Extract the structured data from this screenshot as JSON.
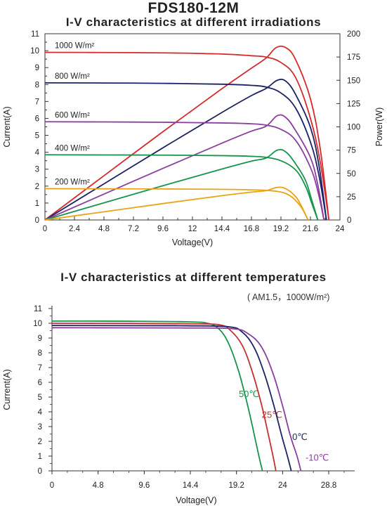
{
  "header": {
    "title": "FDS180-12M"
  },
  "subtitle2": "( AM1.5，1000W/m²)",
  "chart_data": [
    {
      "type": "line",
      "title": "I-V characteristics at different irradiations",
      "xlabel": "Voltage(V)",
      "ylabel": "Current(A)",
      "y2label": "Power(W)",
      "xlim": [
        0,
        24
      ],
      "ylim": [
        0,
        11
      ],
      "y2lim": [
        0,
        200
      ],
      "xticks": [
        "0",
        "2.4",
        "4.8",
        "7.2",
        "9.6",
        "12",
        "14.4",
        "16.8",
        "19.2",
        "21.6",
        "24"
      ],
      "yticks": [
        "0",
        "1",
        "2",
        "3",
        "4",
        "5",
        "6",
        "7",
        "8",
        "9",
        "10",
        "11"
      ],
      "y2ticks": [
        "0",
        "25",
        "50",
        "75",
        "100",
        "125",
        "150",
        "175",
        "200"
      ],
      "grid": false,
      "series": [
        {
          "name": "1000 W/m²",
          "color": "#d42a2a",
          "isc": 9.9,
          "voc": 23.1,
          "vmp": 18.8,
          "imp": 9.6,
          "pmax": 185,
          "iv": [
            [
              0,
              9.9
            ],
            [
              4.8,
              9.89
            ],
            [
              9.6,
              9.87
            ],
            [
              14.4,
              9.8
            ],
            [
              16.8,
              9.7
            ],
            [
              18.0,
              9.62
            ],
            [
              19.2,
              9.3
            ],
            [
              20.4,
              8.4
            ],
            [
              21.6,
              6.0
            ],
            [
              22.4,
              3.4
            ],
            [
              23.1,
              0
            ]
          ],
          "pv": [
            [
              0,
              0
            ],
            [
              4.8,
              47.5
            ],
            [
              9.6,
              94.8
            ],
            [
              14.4,
              141
            ],
            [
              16.8,
              163
            ],
            [
              18.0,
              174
            ],
            [
              18.8,
              185
            ],
            [
              19.6,
              185
            ],
            [
              20.4,
              172
            ],
            [
              21.6,
              130
            ],
            [
              22.4,
              76
            ],
            [
              23.1,
              0
            ]
          ]
        },
        {
          "name": "800 W/m²",
          "color": "#1c2266",
          "isc": 8.1,
          "voc": 22.9,
          "vmp": 18.9,
          "imp": 7.8,
          "pmax": 150,
          "iv": [
            [
              0,
              8.1
            ],
            [
              4.8,
              8.09
            ],
            [
              9.6,
              8.07
            ],
            [
              14.4,
              8.02
            ],
            [
              16.8,
              7.95
            ],
            [
              18.0,
              7.85
            ],
            [
              19.2,
              7.5
            ],
            [
              20.4,
              6.6
            ],
            [
              21.6,
              4.6
            ],
            [
              22.3,
              2.6
            ],
            [
              22.9,
              0
            ]
          ],
          "pv": [
            [
              0,
              0
            ],
            [
              4.8,
              38.8
            ],
            [
              9.6,
              77.5
            ],
            [
              14.4,
              115.5
            ],
            [
              16.8,
              133.6
            ],
            [
              18.0,
              141.3
            ],
            [
              18.9,
              150
            ],
            [
              19.6,
              149
            ],
            [
              20.4,
              134.6
            ],
            [
              21.6,
              99.4
            ],
            [
              22.3,
              58
            ],
            [
              22.9,
              0
            ]
          ]
        },
        {
          "name": "600 W/m²",
          "color": "#8a3e9e",
          "isc": 5.8,
          "voc": 22.7,
          "vmp": 18.9,
          "imp": 5.9,
          "pmax": 112,
          "iv": [
            [
              0,
              5.8
            ],
            [
              4.8,
              5.79
            ],
            [
              9.6,
              5.77
            ],
            [
              14.4,
              5.73
            ],
            [
              16.8,
              5.68
            ],
            [
              18.0,
              5.6
            ],
            [
              19.2,
              5.35
            ],
            [
              20.4,
              4.7
            ],
            [
              21.6,
              3.1
            ],
            [
              22.2,
              1.7
            ],
            [
              22.7,
              0
            ]
          ],
          "pv": [
            [
              0,
              0
            ],
            [
              4.8,
              27.8
            ],
            [
              9.6,
              55.4
            ],
            [
              14.4,
              82.5
            ],
            [
              16.8,
              95.4
            ],
            [
              18.0,
              100.8
            ],
            [
              18.9,
              112
            ],
            [
              19.6,
              110
            ],
            [
              20.4,
              95.9
            ],
            [
              21.6,
              67
            ],
            [
              22.2,
              37.7
            ],
            [
              22.7,
              0
            ]
          ]
        },
        {
          "name": "400 W/m²",
          "color": "#17944a",
          "isc": 3.85,
          "voc": 22.2,
          "vmp": 18.9,
          "imp": 3.9,
          "pmax": 75,
          "iv": [
            [
              0,
              3.85
            ],
            [
              4.8,
              3.84
            ],
            [
              9.6,
              3.83
            ],
            [
              14.4,
              3.8
            ],
            [
              16.8,
              3.76
            ],
            [
              18.0,
              3.7
            ],
            [
              19.2,
              3.5
            ],
            [
              20.4,
              2.95
            ],
            [
              21.2,
              2.0
            ],
            [
              21.7,
              1.0
            ],
            [
              22.2,
              0
            ]
          ],
          "pv": [
            [
              0,
              0
            ],
            [
              4.8,
              18.4
            ],
            [
              9.6,
              36.8
            ],
            [
              14.4,
              54.7
            ],
            [
              16.8,
              63.2
            ],
            [
              18.0,
              66.6
            ],
            [
              18.9,
              75
            ],
            [
              19.6,
              73
            ],
            [
              20.4,
              60.2
            ],
            [
              21.2,
              42.4
            ],
            [
              21.7,
              21.7
            ],
            [
              22.2,
              0
            ]
          ]
        },
        {
          "name": "200 W/m²",
          "color": "#e8a418",
          "isc": 1.85,
          "voc": 21.4,
          "vmp": 18.9,
          "imp": 1.85,
          "pmax": 35,
          "iv": [
            [
              0,
              1.85
            ],
            [
              4.8,
              1.84
            ],
            [
              9.6,
              1.83
            ],
            [
              14.4,
              1.81
            ],
            [
              16.8,
              1.78
            ],
            [
              18.0,
              1.75
            ],
            [
              19.2,
              1.65
            ],
            [
              20.0,
              1.4
            ],
            [
              20.7,
              0.9
            ],
            [
              21.1,
              0.45
            ],
            [
              21.4,
              0
            ]
          ],
          "pv": [
            [
              0,
              0
            ],
            [
              4.8,
              8.8
            ],
            [
              9.6,
              17.6
            ],
            [
              14.4,
              26.1
            ],
            [
              16.8,
              29.9
            ],
            [
              18.0,
              31.5
            ],
            [
              18.9,
              35
            ],
            [
              19.6,
              33.5
            ],
            [
              20.4,
              25
            ],
            [
              20.9,
              14
            ],
            [
              21.4,
              0
            ]
          ]
        }
      ]
    },
    {
      "type": "line",
      "title": "I-V characteristics at different temperatures",
      "xlabel": "Voltage(V)",
      "ylabel": "Current(A)",
      "xlim": [
        0,
        31.5
      ],
      "ylim": [
        0,
        11
      ],
      "xticks": [
        "0",
        "4.8",
        "9.6",
        "14.4",
        "19.2",
        "24",
        "28.8"
      ],
      "yticks": [
        "0",
        "1",
        "2",
        "3",
        "4",
        "5",
        "6",
        "7",
        "8",
        "9",
        "10",
        "11"
      ],
      "grid": false,
      "series": [
        {
          "name": "50℃",
          "color": "#17944a",
          "iv": [
            [
              0,
              10.15
            ],
            [
              8,
              10.14
            ],
            [
              14,
              10.1
            ],
            [
              16.2,
              10.0
            ],
            [
              17.4,
              9.6
            ],
            [
              18.4,
              8.6
            ],
            [
              19.4,
              6.8
            ],
            [
              20.3,
              4.6
            ],
            [
              21.0,
              2.6
            ],
            [
              21.5,
              1.1
            ],
            [
              21.9,
              0
            ]
          ]
        },
        {
          "name": "25℃",
          "color": "#c43030",
          "iv": [
            [
              0,
              10.0
            ],
            [
              8,
              9.99
            ],
            [
              14,
              9.97
            ],
            [
              17.4,
              9.9
            ],
            [
              18.6,
              9.5
            ],
            [
              19.8,
              8.5
            ],
            [
              20.8,
              6.8
            ],
            [
              21.8,
              4.5
            ],
            [
              22.5,
              2.5
            ],
            [
              23.0,
              1.0
            ],
            [
              23.3,
              0
            ]
          ]
        },
        {
          "name": "0℃",
          "color": "#1c2266",
          "iv": [
            [
              0,
              9.85
            ],
            [
              8,
              9.84
            ],
            [
              14,
              9.83
            ],
            [
              18.4,
              9.76
            ],
            [
              19.8,
              9.4
            ],
            [
              21.0,
              8.4
            ],
            [
              22.1,
              6.6
            ],
            [
              23.1,
              4.4
            ],
            [
              23.9,
              2.4
            ],
            [
              24.5,
              1.0
            ],
            [
              24.9,
              0
            ]
          ]
        },
        {
          "name": "-10℃",
          "color": "#8a3e9e",
          "iv": [
            [
              0,
              9.7
            ],
            [
              8,
              9.69
            ],
            [
              14,
              9.68
            ],
            [
              18.8,
              9.63
            ],
            [
              20.4,
              9.3
            ],
            [
              21.8,
              8.4
            ],
            [
              23.0,
              6.6
            ],
            [
              24.0,
              4.4
            ],
            [
              24.8,
              2.4
            ],
            [
              25.5,
              1.0
            ],
            [
              25.9,
              0
            ]
          ]
        }
      ]
    }
  ]
}
